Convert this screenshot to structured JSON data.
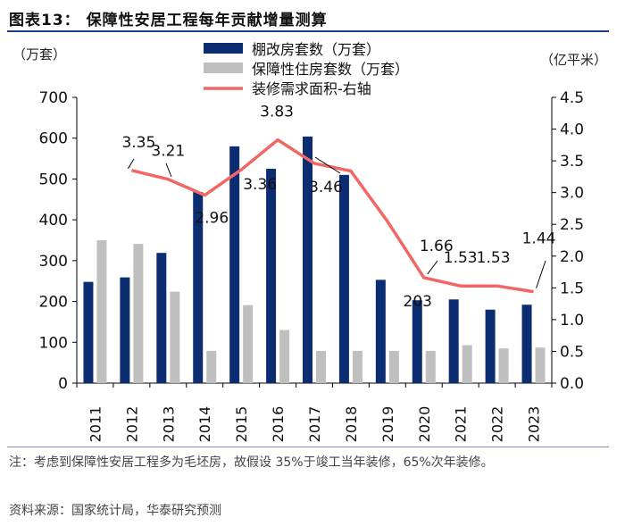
{
  "figure": {
    "title": "图表13：  保障性安居工程每年贡献增量测算",
    "footnote": "注：考虑到保障性安居工程多为毛坯房，故假设 35%于竣工当年装修，65%次年装修。",
    "source": "资料来源：国家统计局，华泰研究预测"
  },
  "chart_data": {
    "type": "bar",
    "categories": [
      "2011",
      "2012",
      "2013",
      "2014",
      "2015",
      "2016",
      "2017",
      "2018",
      "2019",
      "2020",
      "2021",
      "2022",
      "2023"
    ],
    "series": [
      {
        "name": "棚改房套数（万套）",
        "kind": "bar",
        "axis": "left",
        "color": "#0d2d72",
        "values": [
          248,
          259,
          319,
          468,
          580,
          525,
          604,
          510,
          253,
          203,
          205,
          180,
          192
        ]
      },
      {
        "name": "保障性住房套数（万套）",
        "kind": "bar",
        "axis": "left",
        "color": "#bfbfbf",
        "values": [
          350,
          341,
          224,
          79,
          191,
          130,
          79,
          79,
          79,
          79,
          93,
          85,
          87
        ]
      },
      {
        "name": "装修需求面积-右轴",
        "kind": "line",
        "axis": "right",
        "color": "#f26666",
        "x": [
          "2012",
          "2013",
          "2014",
          "2015",
          "2016",
          "2017",
          "2018",
          "2019",
          "2020",
          "2021",
          "2022",
          "2023"
        ],
        "values": [
          3.35,
          3.21,
          2.96,
          3.36,
          3.83,
          3.46,
          3.34,
          2.55,
          1.66,
          1.53,
          1.53,
          1.44
        ]
      }
    ],
    "data_labels": [
      {
        "text": "3.35",
        "category": "2012",
        "series": "装修需求面积-右轴"
      },
      {
        "text": "3.21",
        "category": "2013",
        "series": "装修需求面积-右轴"
      },
      {
        "text": "2.96",
        "category": "2014",
        "series": "装修需求面积-右轴"
      },
      {
        "text": "3.36",
        "category": "2015",
        "series": "装修需求面积-右轴"
      },
      {
        "text": "3.83",
        "category": "2016",
        "series": "装修需求面积-右轴"
      },
      {
        "text": "3.46",
        "category": "2017",
        "series": "装修需求面积-右轴"
      },
      {
        "text": "203",
        "category": "2020",
        "series": "棚改房套数（万套）"
      },
      {
        "text": "1.66",
        "category": "2020",
        "series": "装修需求面积-右轴"
      },
      {
        "text": "1.53",
        "category": "2021",
        "series": "装修需求面积-右轴"
      },
      {
        "text": "1.53",
        "category": "2022",
        "series": "装修需求面积-右轴"
      },
      {
        "text": "1.44",
        "category": "2023",
        "series": "装修需求面积-右轴"
      }
    ],
    "ylabel_left": "（万套）",
    "ylabel_right": "（亿平米）",
    "ylim_left": [
      0,
      700
    ],
    "ylim_right": [
      0,
      4.5
    ],
    "yticks_left": [
      "0",
      "100",
      "200",
      "300",
      "400",
      "500",
      "600",
      "700"
    ],
    "yticks_right": [
      "0.0",
      "0.5",
      "1.0",
      "1.5",
      "2.0",
      "2.5",
      "3.0",
      "3.5",
      "4.0",
      "4.5"
    ],
    "grid": false,
    "legend_position": "top-center"
  }
}
